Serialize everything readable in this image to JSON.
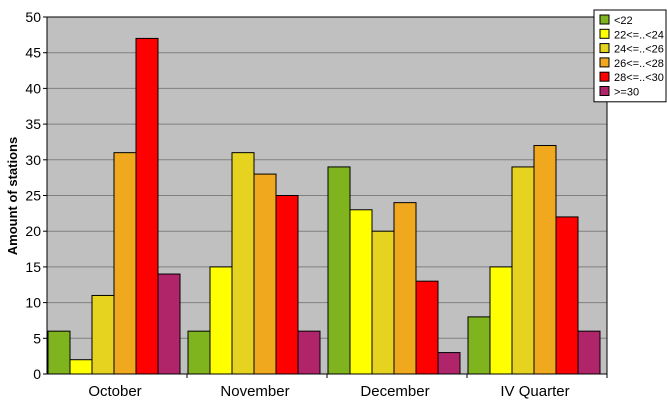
{
  "chart_data": {
    "type": "bar",
    "title": "",
    "xlabel": "",
    "ylabel": "Amount of stations",
    "ylim": [
      0,
      50
    ],
    "yticks": [
      0,
      5,
      10,
      15,
      20,
      25,
      30,
      35,
      40,
      45,
      50
    ],
    "grid": true,
    "legend_position": "top-right",
    "categories": [
      "October",
      "November",
      "December",
      "IV Quarter"
    ],
    "series": [
      {
        "name": "<22",
        "color": "#7fb41e",
        "values": [
          6,
          6,
          29,
          8
        ]
      },
      {
        "name": "22<=..<24",
        "color": "#ffff00",
        "values": [
          2,
          15,
          23,
          15
        ]
      },
      {
        "name": "24<=..<26",
        "color": "#e6d320",
        "values": [
          11,
          31,
          20,
          29
        ]
      },
      {
        "name": "26<=..<28",
        "color": "#f0a81e",
        "values": [
          31,
          28,
          24,
          32
        ]
      },
      {
        "name": "28<=..<30",
        "color": "#ff0000",
        "values": [
          47,
          25,
          13,
          22
        ]
      },
      {
        "name": ">=30",
        "color": "#b0246a",
        "values": [
          14,
          6,
          3,
          6
        ]
      }
    ],
    "plot_background": "#c0c0c0"
  }
}
